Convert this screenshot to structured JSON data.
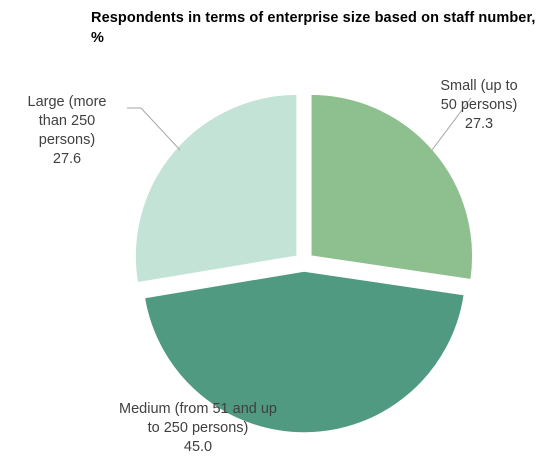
{
  "chart_data": {
    "type": "pie",
    "title": "Respondents in terms of enterprise size based on staff number, %",
    "exploded": true,
    "legend": "none",
    "slices": [
      {
        "label_lines": [
          "Small (up to",
          "50 persons)"
        ],
        "value": 27.3,
        "value_label": "27.3",
        "color": "#8dbf8f"
      },
      {
        "label_lines": [
          "Medium (from 51 and up",
          "to 250 persons)"
        ],
        "value": 45.0,
        "value_label": "45.0",
        "color": "#4f9a80"
      },
      {
        "label_lines": [
          "Large (more",
          "than 250",
          "persons)"
        ],
        "value": 27.6,
        "value_label": "27.6",
        "color": "#c3e3d6"
      }
    ],
    "slice_border_color": "#ffffff",
    "leader_line_color": "#a6a6a6"
  }
}
